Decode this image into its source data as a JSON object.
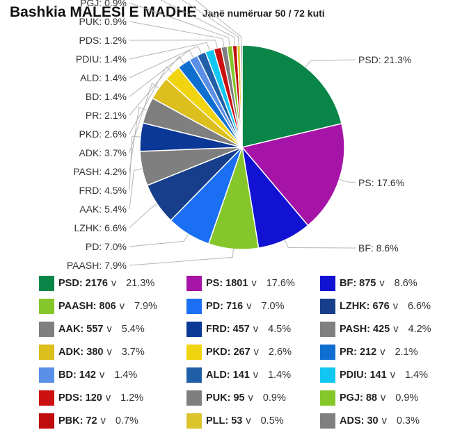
{
  "title": "Bashkia MALESI E MADHE",
  "subtitle": "Janë numëruar 50 / 72 kuti",
  "unit_label": "v",
  "chart_data": {
    "type": "pie",
    "title": "Bashkia MALESI E MADHE",
    "subtitle": "Janë numëruar 50 / 72 kuti",
    "legend_placement": "bottom",
    "slices": [
      {
        "name": "PSD",
        "votes": 2176,
        "votes_text": "2176",
        "percent": 21.3,
        "pct_text": "21.3%",
        "color": "#0a8548"
      },
      {
        "name": "PS",
        "votes": 1801,
        "votes_text": "1801",
        "percent": 17.6,
        "pct_text": "17.6%",
        "color": "#a514a6"
      },
      {
        "name": "BF",
        "votes": 875,
        "votes_text": "875",
        "percent": 8.6,
        "pct_text": "8.6%",
        "color": "#1212d2"
      },
      {
        "name": "PAASH",
        "votes": 806,
        "votes_text": "806",
        "percent": 7.9,
        "pct_text": "7.9%",
        "color": "#85c62b"
      },
      {
        "name": "PD",
        "votes": 716,
        "votes_text": "716",
        "percent": 7.0,
        "pct_text": "7.0%",
        "color": "#1a6ff2"
      },
      {
        "name": "LZHK",
        "votes": 676,
        "votes_text": "676",
        "percent": 6.6,
        "pct_text": "6.6%",
        "color": "#163e8a"
      },
      {
        "name": "AAK",
        "votes": 557,
        "votes_text": "557",
        "percent": 5.4,
        "pct_text": "5.4%",
        "color": "#7f7f7f"
      },
      {
        "name": "FRD",
        "votes": 457,
        "votes_text": "457",
        "percent": 4.5,
        "pct_text": "4.5%",
        "color": "#0b3797"
      },
      {
        "name": "PASH",
        "votes": 425,
        "votes_text": "425",
        "percent": 4.2,
        "pct_text": "4.2%",
        "color": "#7f7f7f"
      },
      {
        "name": "ADK",
        "votes": 380,
        "votes_text": "380",
        "percent": 3.7,
        "pct_text": "3.7%",
        "color": "#dcbe1c"
      },
      {
        "name": "PKD",
        "votes": 267,
        "votes_text": "267",
        "percent": 2.6,
        "pct_text": "2.6%",
        "color": "#f0d40f"
      },
      {
        "name": "PR",
        "votes": 212,
        "votes_text": "212",
        "percent": 2.1,
        "pct_text": "2.1%",
        "color": "#0f6fd0"
      },
      {
        "name": "BD",
        "votes": 142,
        "votes_text": "142",
        "percent": 1.4,
        "pct_text": "1.4%",
        "color": "#5a8fe8"
      },
      {
        "name": "ALD",
        "votes": 141,
        "votes_text": "141",
        "percent": 1.4,
        "pct_text": "1.4%",
        "color": "#1f5fa8"
      },
      {
        "name": "PDIU",
        "votes": 141,
        "votes_text": "141",
        "percent": 1.4,
        "pct_text": "1.4%",
        "color": "#12c6f2"
      },
      {
        "name": "PDS",
        "votes": 120,
        "votes_text": "120",
        "percent": 1.2,
        "pct_text": "1.2%",
        "color": "#cc0f0f"
      },
      {
        "name": "PUK",
        "votes": 95,
        "votes_text": "95",
        "percent": 0.9,
        "pct_text": "0.9%",
        "color": "#7f7f7f"
      },
      {
        "name": "PGJ",
        "votes": 88,
        "votes_text": "88",
        "percent": 0.9,
        "pct_text": "0.9%",
        "color": "#85c62b"
      },
      {
        "name": "PBK",
        "votes": 72,
        "votes_text": "72",
        "percent": 0.7,
        "pct_text": "0.7%",
        "color": "#c00c0c"
      },
      {
        "name": "PLL",
        "votes": 53,
        "votes_text": "53",
        "percent": 0.5,
        "pct_text": "0.5%",
        "color": "#dcc42c"
      },
      {
        "name": "ADS",
        "votes": 30,
        "votes_text": "30",
        "percent": 0.3,
        "pct_text": "0.3%",
        "color": "#7f7f7f"
      }
    ]
  }
}
